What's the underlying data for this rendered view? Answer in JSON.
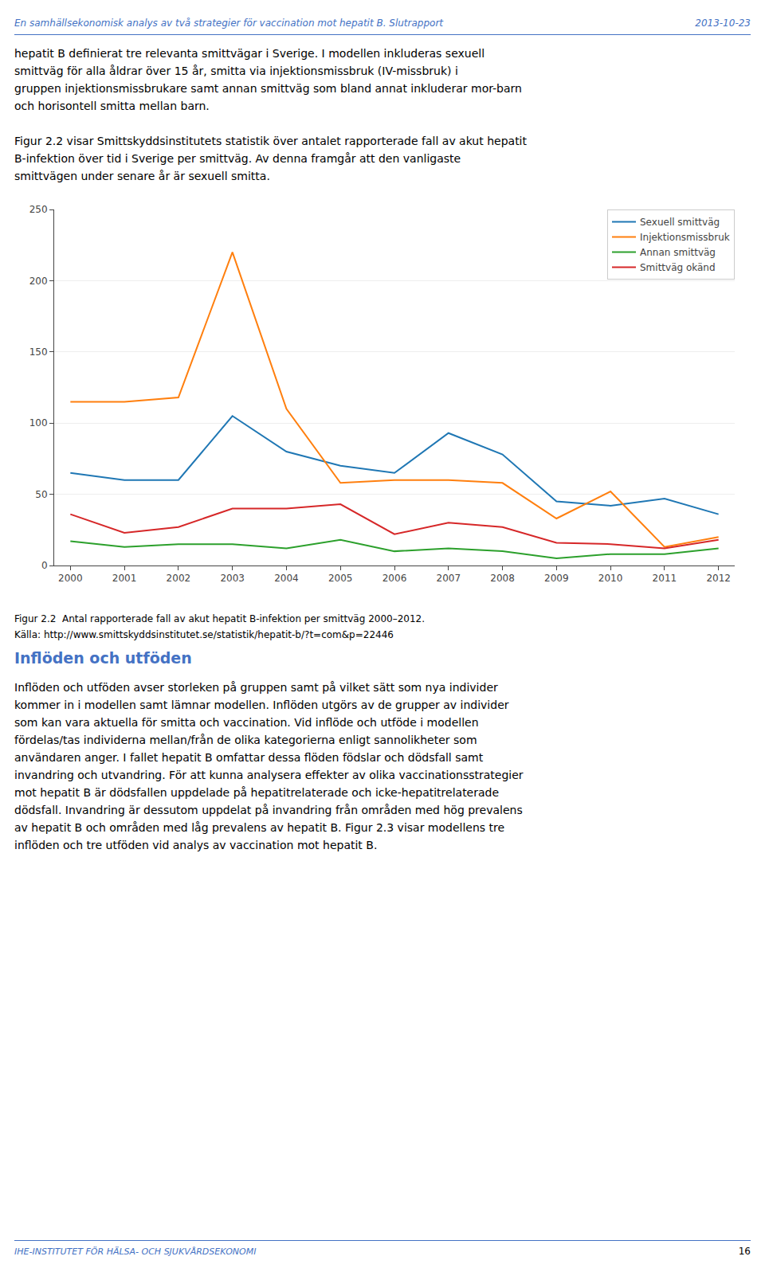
{
  "header": {
    "left": "En samhällsekonomisk analys av två strategier för vaccination mot hepatit B. Slutrapport",
    "right": "2013-10-23",
    "color": "#4472c4"
  },
  "text_above": [
    [
      "hepatit B definierat tre relevanta smittvägar i Sverige. I modellen inkluderas sexuell",
      "smittväg för alla åldrar över 15 år, smitta via injektionsmissbruk (IV-missbruk) i",
      "gruppen injektionsmissbrukare samt annan smittväg som bland annat inkluderar mor-barn",
      "och horisontell smitta mellan barn."
    ],
    [
      "Figur 2.2 visar Smittskyddsinstitutets statistik över antalet rapporterade fall av akut hepatit",
      "B-infektion över tid i Sverige per smittväg. Av denna framgår att den vanligaste",
      "smittvägen under senare år är sexuell smitta."
    ]
  ],
  "chart_data": {
    "type": "line",
    "x": [
      2000,
      2001,
      2002,
      2003,
      2004,
      2005,
      2006,
      2007,
      2008,
      2009,
      2010,
      2011,
      2012
    ],
    "series": [
      {
        "name": "Sexuell smittväg",
        "values": [
          65,
          60,
          60,
          105,
          80,
          70,
          65,
          93,
          78,
          45,
          42,
          47,
          36
        ]
      },
      {
        "name": "Injektionsmissbruk",
        "values": [
          115,
          115,
          118,
          220,
          110,
          58,
          60,
          60,
          58,
          33,
          52,
          13,
          20
        ]
      },
      {
        "name": "Annan smittväg",
        "values": [
          17,
          13,
          15,
          15,
          12,
          18,
          10,
          12,
          10,
          5,
          8,
          8,
          12
        ]
      },
      {
        "name": "Smittväg okänd",
        "values": [
          36,
          23,
          27,
          40,
          40,
          43,
          22,
          30,
          27,
          16,
          15,
          12,
          18
        ]
      }
    ],
    "xlim": [
      1999.7,
      2012.3
    ],
    "xticks": [
      2000,
      2001,
      2002,
      2003,
      2004,
      2005,
      2006,
      2007,
      2008,
      2009,
      2010,
      2011,
      2012
    ],
    "ylim": [
      0,
      250
    ],
    "yticks": [
      0,
      50,
      100,
      150,
      200,
      250
    ],
    "grid": true,
    "legend": "upper right"
  },
  "caption": [
    "Figur 2.2  Antal rapporterade fall av akut hepatit B-infektion per smittväg 2000–2012.",
    "Källa: http://www.smittskyddsinstitutet.se/statistik/hepatit-b/?t=com&p=22446"
  ],
  "section": {
    "text": "Inflöden och utföden",
    "color": "#4472c4"
  },
  "text_below": [
    "Inflöden och utföden avser storleken på gruppen samt på vilket sätt som nya individer",
    "kommer in i modellen samt lämnar modellen. Inflöden utgörs av de grupper av individer",
    "som kan vara aktuella för smitta och vaccination. Vid inflöde och utföde i modellen",
    "fördelas/tas individerna mellan/från de olika kategorierna enligt sannolikheter som",
    "användaren anger. I fallet hepatit B omfattar dessa flöden födslar och dödsfall samt",
    "invandring och utvandring. För att kunna analysera effekter av olika vaccinationsstrategier",
    "mot hepatit B är dödsfallen uppdelade på hepatitrelaterade och icke-hepatitrelaterade",
    "dödsfall. Invandring är dessutom uppdelat på invandring från områden med hög prevalens",
    "av hepatit B och områden med låg prevalens av hepatit B. Figur 2.3 visar modellens tre",
    "inflöden och tre utföden vid analys av vaccination mot hepatit B."
  ],
  "footer": {
    "left": "IHE-INSTITUTET FÖR HÄLSA- OCH SJUKVÅRDSEKONOMI",
    "right": "16"
  }
}
